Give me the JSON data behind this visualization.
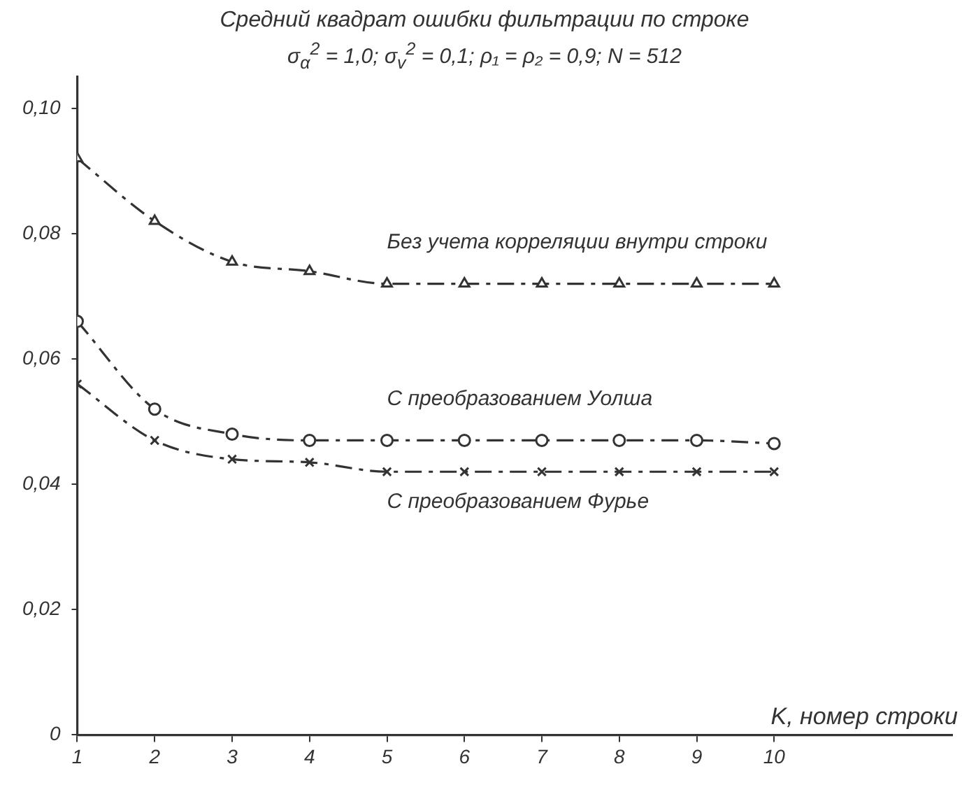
{
  "chart_data": {
    "type": "line",
    "title": "Средний квадрат ошибки фильтрации по строке",
    "subtitle": "σ$_{α}$$^{2}$ = 1,0;  σ$_{v}$$^{2}$ = 0,1;   ρ₁ = ρ₂ = 0,9;   N = 512",
    "xlabel": "K, номер строки",
    "x": [
      1,
      2,
      3,
      4,
      5,
      6,
      7,
      8,
      9,
      10
    ],
    "series": [
      {
        "name": "Без учета корреляции внутри строки",
        "color": "#333333",
        "marker": "triangle",
        "line_style": "dashed",
        "values": [
          0.092,
          0.082,
          0.0755,
          0.074,
          0.072,
          0.072,
          0.072,
          0.072,
          0.072,
          0.072
        ]
      },
      {
        "name": "С преобразованием Уолша",
        "color": "#333333",
        "marker": "circle",
        "line_style": "dashed",
        "values": [
          0.066,
          0.052,
          0.048,
          0.047,
          0.047,
          0.047,
          0.047,
          0.047,
          0.047,
          0.0465
        ]
      },
      {
        "name": "С преобразованием Фурье",
        "color": "#333333",
        "marker": "cross",
        "line_style": "dashed",
        "values": [
          0.056,
          0.047,
          0.044,
          0.0435,
          0.042,
          0.042,
          0.042,
          0.042,
          0.042,
          0.042
        ]
      }
    ],
    "xlim": [
      1,
      12.3
    ],
    "xticks": [
      1,
      2,
      3,
      4,
      5,
      6,
      7,
      8,
      9,
      10
    ],
    "ylim": [
      0,
      0.105
    ],
    "yticks": [
      0,
      {
        "value": 0.02,
        "label": "0,02"
      },
      {
        "value": 0.04,
        "label": "0,04"
      },
      {
        "value": 0.06,
        "label": "0,06"
      },
      {
        "value": 0.08,
        "label": "0,08"
      },
      {
        "value": 0.1,
        "label": "0,10"
      }
    ],
    "grid": false,
    "legend": false
  }
}
